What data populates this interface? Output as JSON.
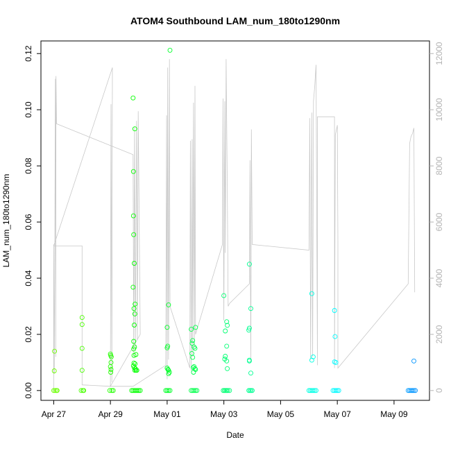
{
  "chart_data": {
    "type": "scatter",
    "title": "ATOM4 Southbound LAM_num_180to1290nm",
    "xlabel": "Date",
    "ylabel": "LAM_num_180to1290nm",
    "x_ticks": [
      "Apr 27",
      "Apr 29",
      "May 01",
      "May 03",
      "May 05",
      "May 07",
      "May 09"
    ],
    "x_tick_values": [
      0,
      2,
      4,
      6,
      8,
      10,
      12
    ],
    "xlim": [
      -0.45,
      13.25
    ],
    "y_ticks": [
      "0.00",
      "0.02",
      "0.04",
      "0.06",
      "0.08",
      "0.10",
      "0.12"
    ],
    "y_tick_values": [
      0,
      0.02,
      0.04,
      0.06,
      0.08,
      0.1,
      0.12
    ],
    "ylim": [
      -0.0035,
      0.1245
    ],
    "y2_ticks": [
      "0",
      "2000",
      "4000",
      "6000",
      "8000",
      "10000",
      "12000"
    ],
    "y2_tick_values": [
      0,
      2000,
      4000,
      6000,
      8000,
      10000,
      12000
    ],
    "y2lim": [
      -350,
      12450
    ],
    "grid": false,
    "legend": "none",
    "series": [
      {
        "marker": "open-circle",
        "points": [
          [
            0.03,
            0.014
          ],
          [
            0.02,
            0.007
          ],
          [
            0.0,
            0.0
          ],
          [
            0.05,
            0.0
          ],
          [
            0.1,
            0.0
          ],
          [
            0.12,
            0.0
          ],
          [
            1.0,
            0.026
          ],
          [
            1.0,
            0.0235
          ],
          [
            1.0,
            0.015
          ],
          [
            1.0,
            0.0072
          ],
          [
            0.97,
            0.0
          ],
          [
            1.03,
            0.0
          ],
          [
            1.06,
            0.0
          ],
          [
            2.0,
            0.013
          ],
          [
            2.01,
            0.0125
          ],
          [
            2.03,
            0.012
          ],
          [
            2.02,
            0.01
          ],
          [
            2.0,
            0.0085
          ],
          [
            2.02,
            0.0075
          ],
          [
            2.01,
            0.0065
          ],
          [
            1.98,
            0.0
          ],
          [
            2.05,
            0.0
          ],
          [
            2.1,
            0.0
          ],
          [
            2.8,
            0.1042
          ],
          [
            2.81,
            0.078
          ],
          [
            2.81,
            0.0622
          ],
          [
            2.82,
            0.0555
          ],
          [
            2.84,
            0.0453
          ],
          [
            2.8,
            0.0368
          ],
          [
            2.87,
            0.0308
          ],
          [
            2.83,
            0.0292
          ],
          [
            2.86,
            0.0273
          ],
          [
            2.84,
            0.0233
          ],
          [
            2.82,
            0.0175
          ],
          [
            2.85,
            0.0155
          ],
          [
            2.82,
            0.0148
          ],
          [
            2.83,
            0.0125
          ],
          [
            2.9,
            0.0128
          ],
          [
            2.83,
            0.0098
          ],
          [
            2.87,
            0.0095
          ],
          [
            2.81,
            0.0088
          ],
          [
            2.84,
            0.0082
          ],
          [
            2.88,
            0.0078
          ],
          [
            2.86,
            0.0072
          ],
          [
            2.9,
            0.0072
          ],
          [
            2.93,
            0.0072
          ],
          [
            2.86,
            0.0932
          ],
          [
            2.75,
            0.0
          ],
          [
            2.8,
            0.0
          ],
          [
            2.85,
            0.0
          ],
          [
            2.9,
            0.0
          ],
          [
            2.95,
            0.0
          ],
          [
            3.0,
            0.0
          ],
          [
            3.05,
            0.0
          ],
          [
            4.1,
            0.1212
          ],
          [
            4.05,
            0.0305
          ],
          [
            4.0,
            0.0225
          ],
          [
            4.02,
            0.0158
          ],
          [
            4.0,
            0.0152
          ],
          [
            4.0,
            0.008
          ],
          [
            4.03,
            0.0075
          ],
          [
            4.05,
            0.0072
          ],
          [
            4.08,
            0.0065
          ],
          [
            4.05,
            0.006
          ],
          [
            3.95,
            0.0
          ],
          [
            4.0,
            0.0
          ],
          [
            4.05,
            0.0
          ],
          [
            4.1,
            0.0
          ],
          [
            4.85,
            0.0218
          ],
          [
            4.9,
            0.0178
          ],
          [
            4.88,
            0.0168
          ],
          [
            4.95,
            0.0155
          ],
          [
            4.98,
            0.015
          ],
          [
            4.87,
            0.0132
          ],
          [
            4.9,
            0.0118
          ],
          [
            4.95,
            0.0085
          ],
          [
            4.92,
            0.0082
          ],
          [
            4.98,
            0.0078
          ],
          [
            5.0,
            0.0075
          ],
          [
            4.93,
            0.0065
          ],
          [
            5.0,
            0.0225
          ],
          [
            4.85,
            0.0
          ],
          [
            4.9,
            0.0
          ],
          [
            4.95,
            0.0
          ],
          [
            5.0,
            0.0
          ],
          [
            5.05,
            0.0
          ],
          [
            6.0,
            0.0338
          ],
          [
            6.1,
            0.0245
          ],
          [
            6.12,
            0.0232
          ],
          [
            6.05,
            0.0212
          ],
          [
            6.1,
            0.0158
          ],
          [
            6.05,
            0.0122
          ],
          [
            6.03,
            0.0112
          ],
          [
            6.1,
            0.0105
          ],
          [
            6.12,
            0.0078
          ],
          [
            5.98,
            0.0
          ],
          [
            6.02,
            0.0
          ],
          [
            6.06,
            0.0
          ],
          [
            6.1,
            0.0
          ],
          [
            6.14,
            0.0
          ],
          [
            6.2,
            0.0
          ],
          [
            6.9,
            0.045
          ],
          [
            6.95,
            0.0292
          ],
          [
            6.9,
            0.0222
          ],
          [
            6.88,
            0.0215
          ],
          [
            6.9,
            0.0108
          ],
          [
            6.9,
            0.0105
          ],
          [
            6.95,
            0.0062
          ],
          [
            6.88,
            0.0
          ],
          [
            6.92,
            0.0
          ],
          [
            6.96,
            0.0
          ],
          [
            7.0,
            0.0
          ],
          [
            9.1,
            0.0345
          ],
          [
            9.1,
            0.0108
          ],
          [
            9.15,
            0.012
          ],
          [
            9.0,
            0.0
          ],
          [
            9.05,
            0.0
          ],
          [
            9.1,
            0.0
          ],
          [
            9.15,
            0.0
          ],
          [
            9.2,
            0.0
          ],
          [
            9.25,
            0.0
          ],
          [
            9.9,
            0.0285
          ],
          [
            9.92,
            0.0192
          ],
          [
            9.9,
            0.0102
          ],
          [
            9.95,
            0.01
          ],
          [
            9.85,
            0.0
          ],
          [
            9.9,
            0.0
          ],
          [
            9.95,
            0.0
          ],
          [
            10.0,
            0.0
          ],
          [
            10.05,
            0.0
          ],
          [
            12.7,
            0.0105
          ],
          [
            12.5,
            0.0
          ],
          [
            12.55,
            0.0
          ],
          [
            12.6,
            0.0
          ],
          [
            12.65,
            0.0
          ],
          [
            12.7,
            0.0
          ],
          [
            12.75,
            0.0
          ]
        ]
      }
    ],
    "secondary_series": {
      "axis": "right",
      "color": "#c8c8c8",
      "points": [
        [
          0.0,
          0
        ],
        [
          0.0,
          5200
        ],
        [
          0.02,
          600
        ],
        [
          0.04,
          5100
        ],
        [
          0.06,
          11100
        ],
        [
          0.07,
          1200
        ],
        [
          0.08,
          11200
        ],
        [
          0.1,
          9500
        ],
        [
          2.8,
          8400
        ],
        [
          2.82,
          1200
        ],
        [
          2.85,
          9400
        ],
        [
          2.88,
          1500
        ],
        [
          2.92,
          9600
        ],
        [
          2.95,
          1800
        ],
        [
          2.98,
          9950
        ],
        [
          3.05,
          2000
        ],
        [
          2.0,
          150
        ],
        [
          2.02,
          10200
        ],
        [
          2.05,
          300
        ],
        [
          2.07,
          11500
        ],
        [
          0.0,
          5150
        ],
        [
          1.0,
          5150
        ],
        [
          1.0,
          200
        ],
        [
          2.0,
          150
        ],
        [
          2.8,
          150
        ],
        [
          3.95,
          900
        ],
        [
          3.98,
          9800
        ],
        [
          4.0,
          400
        ],
        [
          4.02,
          11500
        ],
        [
          4.05,
          1100
        ],
        [
          4.08,
          11800
        ],
        [
          4.1,
          3000
        ],
        [
          4.8,
          800
        ],
        [
          4.82,
          8900
        ],
        [
          4.85,
          700
        ],
        [
          4.88,
          8950
        ],
        [
          4.9,
          1200
        ],
        [
          4.93,
          10250
        ],
        [
          4.96,
          1500
        ],
        [
          4.98,
          10850
        ],
        [
          5.0,
          2000
        ],
        [
          5.95,
          5200
        ],
        [
          5.97,
          10400
        ],
        [
          6.0,
          2500
        ],
        [
          6.03,
          10300
        ],
        [
          6.05,
          4900
        ],
        [
          6.08,
          11800
        ],
        [
          6.12,
          7200
        ],
        [
          6.15,
          3000
        ],
        [
          6.2,
          3100
        ],
        [
          6.9,
          3800
        ],
        [
          6.92,
          8200
        ],
        [
          6.95,
          1000
        ],
        [
          6.97,
          9300
        ],
        [
          7.0,
          5200
        ],
        [
          9.0,
          5000
        ],
        [
          9.03,
          9700
        ],
        [
          9.06,
          1100
        ],
        [
          9.1,
          9900
        ],
        [
          9.13,
          1200
        ],
        [
          9.16,
          10300
        ],
        [
          9.2,
          10800
        ],
        [
          9.25,
          11600
        ],
        [
          9.3,
          900
        ],
        [
          9.3,
          9750
        ],
        [
          9.9,
          9750
        ],
        [
          9.9,
          800
        ],
        [
          9.93,
          9100
        ],
        [
          9.97,
          9300
        ],
        [
          10.0,
          9450
        ],
        [
          10.02,
          5300
        ],
        [
          10.02,
          800
        ],
        [
          12.5,
          3800
        ],
        [
          12.55,
          8800
        ],
        [
          12.6,
          9050
        ],
        [
          12.65,
          9150
        ],
        [
          12.7,
          9350
        ],
        [
          12.73,
          3500
        ]
      ]
    }
  }
}
